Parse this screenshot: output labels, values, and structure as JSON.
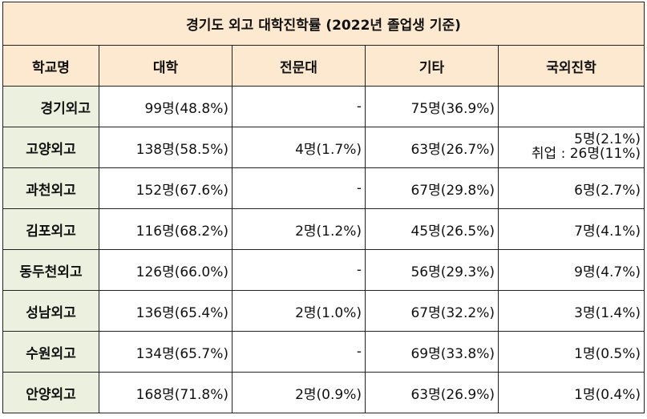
{
  "title": "경기도 외고 대학진학률 (2022년 졸업생 기준)",
  "columns": [
    "학교명",
    "대학",
    "전문대",
    "기타",
    "국외진학"
  ],
  "rows": [
    {
      "school": "경기외고",
      "univ": "99명(48.8%)",
      "college": "-",
      "other": "75명(36.9%)",
      "abroad": "",
      "extra": ""
    },
    {
      "school": "고양외고",
      "univ": "138명(58.5%)",
      "college": "4명(1.7%)",
      "other": "63명(26.7%)",
      "abroad": "5명(2.1%)",
      "extra": "취업 : 26명(11%)"
    },
    {
      "school": "과천외고",
      "univ": "152명(67.6%)",
      "college": "-",
      "other": "67명(29.8%)",
      "abroad": "6명(2.7%)",
      "extra": ""
    },
    {
      "school": "김포외고",
      "univ": "116명(68.2%)",
      "college": "2명(1.2%)",
      "other": "45명(26.5%)",
      "abroad": "7명(4.1%)",
      "extra": ""
    },
    {
      "school": "동두천외고",
      "univ": "126명(66.0%)",
      "college": "-",
      "other": "56명(29.3%)",
      "abroad": "9명(4.7%)",
      "extra": ""
    },
    {
      "school": "성남외고",
      "univ": "136명(65.4%)",
      "college": "2명(1.0%)",
      "other": "67명(32.2%)",
      "abroad": "3명(1.4%)",
      "extra": ""
    },
    {
      "school": "수원외고",
      "univ": "134명(65.7%)",
      "college": "-",
      "other": "69명(33.8%)",
      "abroad": "1명(0.5%)",
      "extra": ""
    },
    {
      "school": "안양외고",
      "univ": "168명(71.8%)",
      "college": "2명(0.9%)",
      "other": "63명(26.9%)",
      "abroad": "1명(0.4%)",
      "extra": ""
    }
  ],
  "colors": {
    "header_bg": "#fde9d0",
    "school_bg": "#ebf1de",
    "border": "#222222"
  }
}
